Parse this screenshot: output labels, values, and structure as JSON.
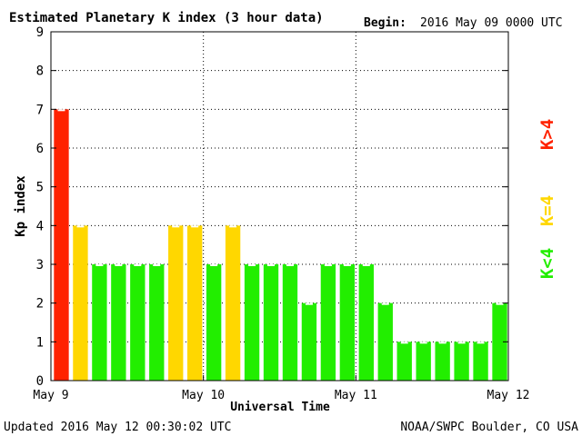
{
  "chart_data": {
    "type": "bar",
    "title": "Estimated Planetary K index (3 hour data)",
    "begin_label": "Begin:",
    "begin_value": "2016 May 09 0000 UTC",
    "xlabel": "Universal Time",
    "ylabel": "Kp index",
    "ylim": [
      0,
      9
    ],
    "yticks": [
      "0",
      "1",
      "2",
      "3",
      "4",
      "5",
      "6",
      "7",
      "8",
      "9"
    ],
    "x_tick_labels": [
      "May 9",
      "May 10",
      "May 11",
      "May 12"
    ],
    "grid": "dotted",
    "values": [
      7,
      4,
      3,
      3,
      3,
      3,
      4,
      4,
      3,
      4,
      3,
      3,
      3,
      2,
      3,
      3,
      3,
      2,
      1,
      1,
      1,
      1,
      1,
      2
    ],
    "colors": {
      "high": "#ff2200",
      "equal": "#ffd700",
      "low": "#22ee00"
    },
    "legend": [
      {
        "label": "K>4",
        "color": "#ff2200"
      },
      {
        "label": "K=4",
        "color": "#ffd700"
      },
      {
        "label": "K<4",
        "color": "#22ee00"
      }
    ]
  },
  "footer": {
    "updated": "Updated 2016 May 12 00:30:02 UTC",
    "source": "NOAA/SWPC Boulder, CO USA"
  }
}
